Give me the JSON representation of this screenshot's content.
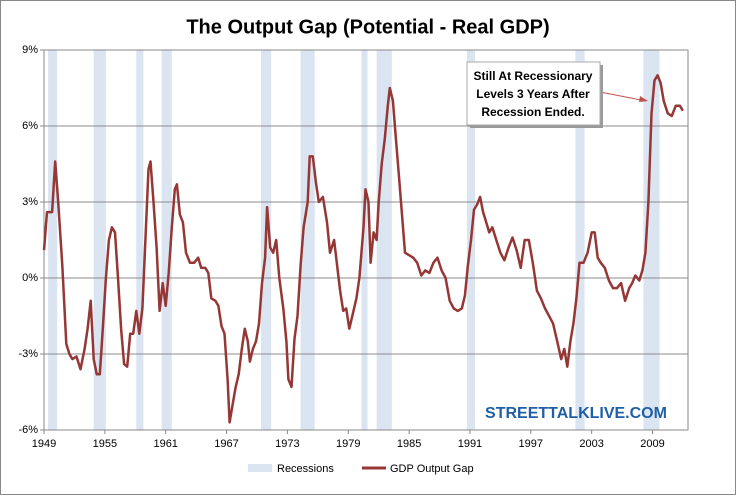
{
  "chart_data": {
    "type": "line",
    "title": "The Output Gap (Potential - Real GDP)",
    "x": [
      1949.0,
      1949.3,
      1949.8,
      1950.1,
      1950.4,
      1950.8,
      1951.2,
      1951.5,
      1951.8,
      1952.2,
      1952.6,
      1953.0,
      1953.3,
      1953.6,
      1953.9,
      1954.2,
      1954.5,
      1954.8,
      1955.1,
      1955.4,
      1955.7,
      1956.0,
      1956.3,
      1956.6,
      1956.9,
      1957.2,
      1957.5,
      1957.8,
      1958.1,
      1958.4,
      1958.7,
      1959.0,
      1959.3,
      1959.5,
      1959.8,
      1960.1,
      1960.4,
      1960.7,
      1961.0,
      1961.3,
      1961.6,
      1961.9,
      1962.1,
      1962.4,
      1962.7,
      1963.0,
      1963.4,
      1963.8,
      1964.2,
      1964.5,
      1964.9,
      1965.2,
      1965.5,
      1965.9,
      1966.2,
      1966.5,
      1966.8,
      1967.1,
      1967.3,
      1967.6,
      1967.9,
      1968.2,
      1968.5,
      1968.8,
      1969.1,
      1969.3,
      1969.6,
      1969.9,
      1970.2,
      1970.5,
      1970.8,
      1971.0,
      1971.3,
      1971.6,
      1971.9,
      1972.2,
      1972.6,
      1972.9,
      1973.1,
      1973.4,
      1973.7,
      1974.0,
      1974.3,
      1974.6,
      1975.0,
      1975.2,
      1975.5,
      1975.8,
      1976.1,
      1976.5,
      1976.9,
      1977.2,
      1977.6,
      1977.9,
      1978.2,
      1978.5,
      1978.8,
      1979.1,
      1979.4,
      1979.8,
      1980.1,
      1980.5,
      1980.7,
      1981.0,
      1981.2,
      1981.5,
      1981.8,
      1982.0,
      1982.3,
      1982.6,
      1982.9,
      1983.1,
      1983.4,
      1983.7,
      1984.0,
      1984.3,
      1984.6,
      1985.0,
      1985.4,
      1985.8,
      1986.2,
      1986.6,
      1987.0,
      1987.4,
      1987.8,
      1988.2,
      1988.6,
      1989.0,
      1989.4,
      1989.8,
      1990.2,
      1990.5,
      1990.8,
      1991.1,
      1991.4,
      1991.7,
      1992.0,
      1992.3,
      1992.6,
      1992.9,
      1993.2,
      1993.6,
      1994.0,
      1994.4,
      1994.8,
      1995.2,
      1995.6,
      1996.0,
      1996.4,
      1996.8,
      1997.2,
      1997.6,
      1998.0,
      1998.4,
      1998.8,
      1999.2,
      1999.6,
      2000.0,
      2000.3,
      2000.6,
      2000.9,
      2001.2,
      2001.5,
      2001.8,
      2002.2,
      2002.6,
      2003.0,
      2003.3,
      2003.6,
      2003.9,
      2004.3,
      2004.7,
      2005.1,
      2005.5,
      2005.9,
      2006.3,
      2006.7,
      2007.0,
      2007.3,
      2007.7,
      2008.0,
      2008.3,
      2008.6,
      2008.9,
      2009.2,
      2009.5,
      2009.8,
      2010.1,
      2010.5,
      2010.9,
      2011.3,
      2011.7,
      2012.0
    ],
    "series": [
      {
        "name": "GDP Output Gap",
        "color": "#953735",
        "values": [
          1.1,
          2.6,
          2.6,
          4.6,
          3.0,
          0.5,
          -2.6,
          -3.0,
          -3.2,
          -3.1,
          -3.6,
          -2.8,
          -2.0,
          -0.9,
          -3.2,
          -3.8,
          -3.8,
          -2.0,
          0.0,
          1.5,
          2.0,
          1.8,
          0.0,
          -2.0,
          -3.4,
          -3.5,
          -2.2,
          -2.2,
          -1.3,
          -2.2,
          -1.2,
          1.5,
          4.3,
          4.6,
          3.0,
          1.2,
          -1.3,
          -0.2,
          -1.1,
          0.2,
          2.0,
          3.5,
          3.7,
          2.5,
          2.2,
          1.0,
          0.6,
          0.6,
          0.8,
          0.4,
          0.4,
          0.2,
          -0.8,
          -0.9,
          -1.1,
          -1.9,
          -2.2,
          -4.0,
          -5.7,
          -5.0,
          -4.3,
          -3.8,
          -2.8,
          -2.0,
          -2.5,
          -3.3,
          -2.8,
          -2.5,
          -1.8,
          -0.2,
          0.8,
          2.8,
          1.2,
          1.0,
          1.5,
          0.0,
          -1.2,
          -2.5,
          -4.0,
          -4.3,
          -2.4,
          -1.5,
          0.5,
          2.0,
          3.0,
          4.8,
          4.8,
          3.8,
          3.0,
          3.2,
          2.2,
          1.0,
          1.5,
          0.5,
          -0.5,
          -1.3,
          -1.2,
          -2.0,
          -1.5,
          -0.8,
          0.0,
          2.0,
          3.5,
          3.0,
          0.6,
          1.8,
          1.5,
          3.0,
          4.5,
          5.5,
          6.8,
          7.5,
          7.0,
          5.5,
          4.0,
          2.5,
          1.0,
          0.9,
          0.8,
          0.6,
          0.1,
          0.3,
          0.2,
          0.6,
          0.8,
          0.3,
          0.0,
          -0.9,
          -1.2,
          -1.3,
          -1.2,
          -0.7,
          0.5,
          1.5,
          2.7,
          2.9,
          3.2,
          2.6,
          2.2,
          1.8,
          2.0,
          1.5,
          1.0,
          0.7,
          1.2,
          1.6,
          1.1,
          0.4,
          1.5,
          1.5,
          0.6,
          -0.5,
          -0.8,
          -1.2,
          -1.5,
          -1.8,
          -2.5,
          -3.2,
          -2.8,
          -3.5,
          -2.5,
          -1.8,
          -0.8,
          0.6,
          0.6,
          1.0,
          1.8,
          1.8,
          0.8,
          0.6,
          0.4,
          -0.1,
          -0.4,
          -0.4,
          -0.2,
          -0.9,
          -0.4,
          -0.2,
          0.1,
          -0.1,
          0.3,
          1.0,
          3.0,
          6.5,
          7.8,
          8.0,
          7.7,
          7.0,
          6.5,
          6.4,
          6.8,
          6.8,
          6.6
        ]
      }
    ],
    "recessions": {
      "name": "Recessions",
      "color": "#dbe5f1",
      "spans": [
        [
          1949.4,
          1950.3
        ],
        [
          1953.9,
          1955.1
        ],
        [
          1958.1,
          1958.8
        ],
        [
          1960.6,
          1961.6
        ],
        [
          1970.4,
          1971.4
        ],
        [
          1974.3,
          1975.7
        ],
        [
          1980.3,
          1980.9
        ],
        [
          1981.8,
          1983.3
        ],
        [
          1990.7,
          1991.5
        ],
        [
          2001.4,
          2002.3
        ],
        [
          2008.1,
          2009.7
        ]
      ]
    },
    "xlim": [
      1949,
      2012.5
    ],
    "xticks": [
      1949,
      1955,
      1961,
      1967,
      1973,
      1979,
      1985,
      1991,
      1997,
      2003,
      2009
    ],
    "ylim": [
      -6,
      9
    ],
    "yticks": [
      {
        "value": -6,
        "label": "-6%"
      },
      {
        "value": -3,
        "label": "-3%"
      },
      {
        "value": 0,
        "label": "0%"
      },
      {
        "value": 3,
        "label": "3%"
      },
      {
        "value": 6,
        "label": "6%"
      },
      {
        "value": 9,
        "label": "9%"
      }
    ],
    "grid": true,
    "annotation": [
      "Still At Recessionary",
      "Levels 3 Years After",
      "Recession Ended."
    ],
    "watermark": "STREETTALKLIVE.COM"
  }
}
